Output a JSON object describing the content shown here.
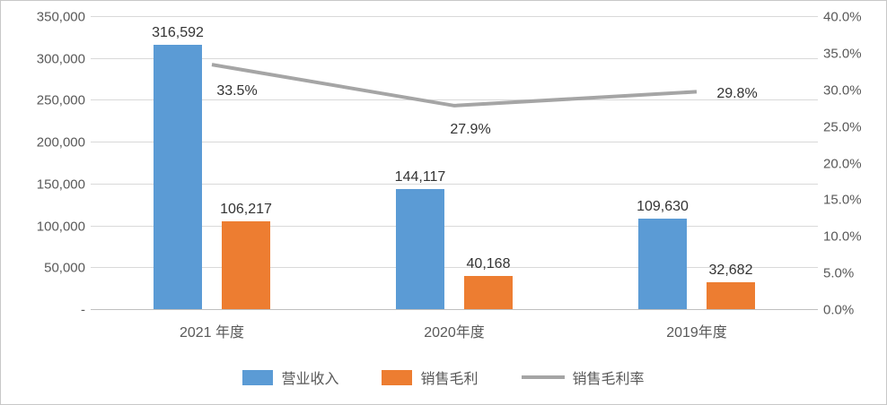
{
  "chart_data": {
    "type": "bar+line",
    "title": "",
    "categories": [
      "2021 年度",
      "2020年度",
      "2019年度"
    ],
    "series": [
      {
        "name": "营业收入",
        "type": "bar",
        "axis": "left",
        "color": "#5B9BD5",
        "values": [
          316592,
          144117,
          109630
        ],
        "labels": [
          "316,592",
          "144,117",
          "109,630"
        ]
      },
      {
        "name": "销售毛利",
        "type": "bar",
        "axis": "left",
        "color": "#ED7D31",
        "values": [
          106217,
          40168,
          32682
        ],
        "labels": [
          "106,217",
          "40,168",
          "32,682"
        ]
      },
      {
        "name": "销售毛利率",
        "type": "line",
        "axis": "right",
        "color": "#A5A5A5",
        "values": [
          33.5,
          27.9,
          29.8
        ],
        "labels": [
          "33.5%",
          "27.9%",
          "29.8%"
        ]
      }
    ],
    "left_axis": {
      "min": 0,
      "max": 350000,
      "step": 50000,
      "tick_labels": [
        "-",
        "50,000",
        "100,000",
        "150,000",
        "200,000",
        "250,000",
        "300,000",
        "350,000"
      ]
    },
    "right_axis": {
      "min": 0,
      "max": 40,
      "step": 5,
      "tick_labels": [
        "0.0%",
        "5.0%",
        "10.0%",
        "15.0%",
        "20.0%",
        "25.0%",
        "30.0%",
        "35.0%",
        "40.0%"
      ]
    },
    "legend": [
      {
        "label": "营业收入",
        "color": "#5B9BD5",
        "marker": "square"
      },
      {
        "label": "销售毛利",
        "color": "#ED7D31",
        "marker": "square"
      },
      {
        "label": "销售毛利率",
        "color": "#A5A5A5",
        "marker": "line"
      }
    ],
    "grid": true,
    "legend_position": "bottom",
    "colors": {
      "gridline": "#D9D9D9",
      "axis_line": "#BFBFBF",
      "tick_text": "#595959",
      "data_label_text": "#333333"
    }
  }
}
